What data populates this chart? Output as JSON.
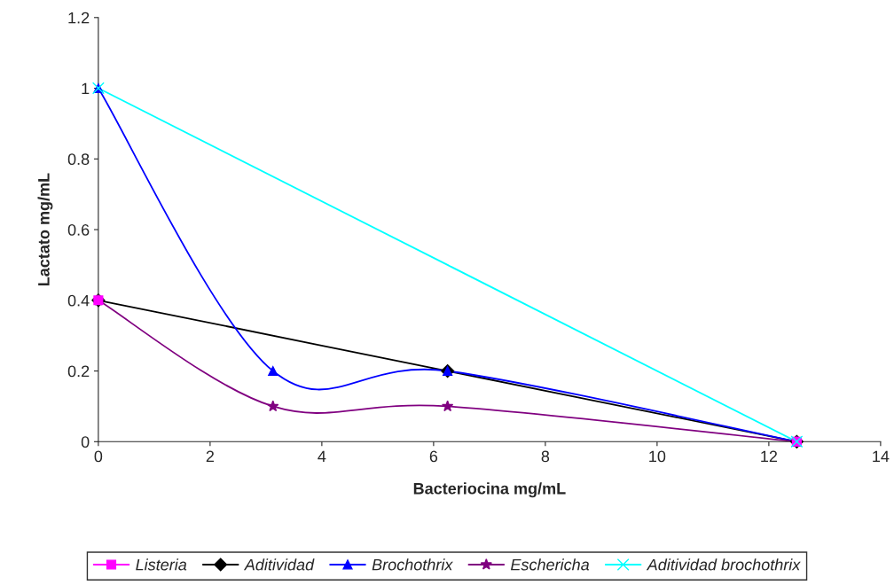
{
  "chart_data": {
    "type": "line",
    "xlabel": "Bacteriocina mg/mL",
    "ylabel": "Lactato mg/mL",
    "xlim": [
      0,
      14
    ],
    "xticks": [
      0,
      2,
      4,
      6,
      8,
      10,
      12,
      14
    ],
    "ylim": [
      0,
      1.2
    ],
    "yticks": [
      0,
      0.2,
      0.4,
      0.6,
      0.8,
      1,
      1.2
    ],
    "grid": false,
    "legend": "bottom",
    "series": [
      {
        "name": "Listeria",
        "type": "scatter",
        "color": "#ff00ff",
        "marker": "square",
        "x": [
          0,
          12.5
        ],
        "values": [
          0.4,
          0
        ]
      },
      {
        "name": "Aditividad",
        "color": "#000000",
        "marker": "diamond",
        "x": [
          0,
          6.25,
          12.5
        ],
        "values": [
          0.4,
          0.2,
          0
        ]
      },
      {
        "name": "Brochothrix",
        "color": "#0000ff",
        "marker": "triangle",
        "x": [
          0,
          3.125,
          6.25,
          12.5
        ],
        "values": [
          1,
          0.2,
          0.2,
          0
        ]
      },
      {
        "name": "Eschericha",
        "color": "#800080",
        "marker": "star",
        "x": [
          0,
          3.125,
          6.25,
          12.5
        ],
        "values": [
          0.4,
          0.1,
          0.1,
          0
        ]
      },
      {
        "name": "Aditividad brochothrix",
        "color": "#00ffff",
        "marker": "cross",
        "x": [
          0,
          12.5
        ],
        "values": [
          1,
          0
        ]
      }
    ]
  }
}
